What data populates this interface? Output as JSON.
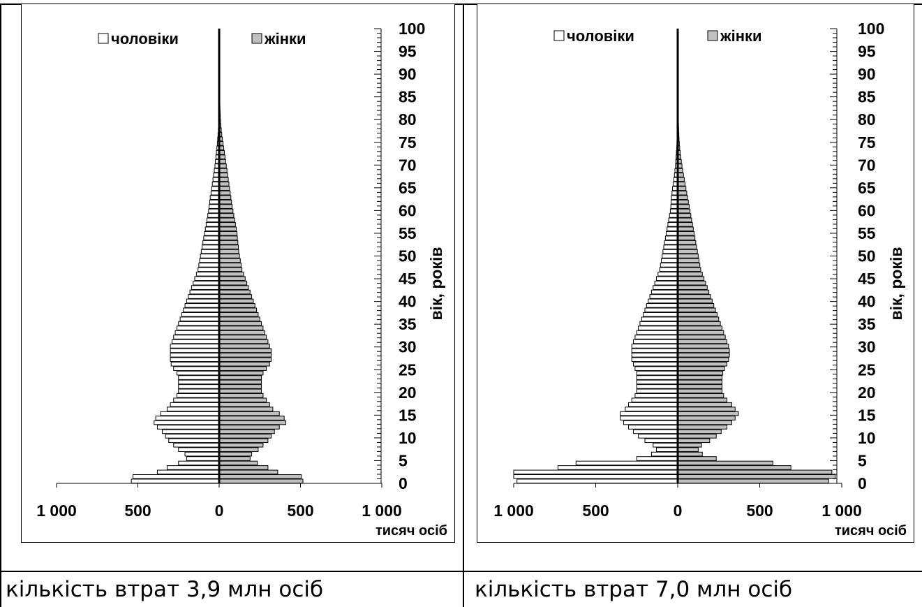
{
  "captions": [
    "кількість втрат 3,9 млн осіб",
    "кількість втрат 7,0 млн осіб"
  ],
  "chart_data": [
    {
      "type": "bar",
      "orientation": "horizontal",
      "legend": {
        "position": "top"
      },
      "series": [
        {
          "name": "чоловіки",
          "color": "#ffffff",
          "values": [
            540,
            530,
            380,
            320,
            250,
            200,
            210,
            250,
            280,
            310,
            330,
            350,
            380,
            400,
            390,
            360,
            320,
            300,
            280,
            260,
            250,
            250,
            250,
            250,
            260,
            280,
            295,
            300,
            300,
            300,
            300,
            290,
            280,
            270,
            260,
            250,
            240,
            230,
            220,
            210,
            200,
            190,
            180,
            170,
            160,
            150,
            140,
            130,
            125,
            120,
            115,
            110,
            105,
            100,
            95,
            90,
            85,
            80,
            75,
            70,
            65,
            62,
            58,
            55,
            50,
            46,
            42,
            38,
            34,
            30,
            26,
            23,
            20,
            17,
            14,
            11,
            9,
            7,
            5,
            4,
            3,
            3,
            2,
            2,
            2,
            2,
            2,
            2,
            1,
            1,
            1,
            1,
            1,
            1,
            1,
            1,
            1,
            1,
            1,
            1,
            1
          ]
        },
        {
          "name": "жінки",
          "color": "#c0c0c0",
          "values": [
            515,
            505,
            360,
            300,
            235,
            190,
            200,
            240,
            270,
            300,
            320,
            340,
            370,
            410,
            400,
            370,
            330,
            310,
            290,
            270,
            260,
            260,
            260,
            260,
            270,
            290,
            310,
            320,
            320,
            320,
            310,
            300,
            290,
            280,
            270,
            260,
            250,
            240,
            230,
            220,
            210,
            200,
            190,
            180,
            170,
            160,
            150,
            140,
            135,
            130,
            125,
            120,
            118,
            115,
            112,
            110,
            105,
            100,
            95,
            90,
            85,
            80,
            76,
            72,
            68,
            64,
            60,
            56,
            52,
            48,
            44,
            40,
            36,
            32,
            28,
            24,
            20,
            16,
            13,
            10,
            8,
            7,
            6,
            5,
            4,
            3,
            3,
            2,
            2,
            2,
            2,
            2,
            1,
            1,
            1,
            1,
            1,
            1,
            1,
            1,
            1
          ]
        }
      ],
      "x_ticks": [
        "1 000",
        "500",
        "0",
        "500",
        "1 000"
      ],
      "x_unit": "тисяч осіб",
      "xlim": [
        -1000,
        1000
      ],
      "y_ticks": [
        "0",
        "5",
        "10",
        "15",
        "20",
        "25",
        "30",
        "35",
        "40",
        "45",
        "50",
        "55",
        "60",
        "65",
        "70",
        "75",
        "80",
        "85",
        "90",
        "95",
        "100"
      ],
      "ylabel": "вік,  років",
      "ylim": [
        0,
        100
      ]
    },
    {
      "type": "bar",
      "orientation": "horizontal",
      "legend": {
        "position": "top"
      },
      "series": [
        {
          "name": "чоловіки",
          "color": "#ffffff",
          "values": [
            980,
            1000,
            1000,
            730,
            620,
            250,
            160,
            130,
            150,
            200,
            240,
            270,
            300,
            330,
            350,
            350,
            320,
            300,
            280,
            260,
            250,
            250,
            250,
            250,
            250,
            260,
            270,
            280,
            280,
            280,
            280,
            270,
            260,
            250,
            240,
            230,
            220,
            210,
            200,
            190,
            180,
            170,
            160,
            150,
            140,
            130,
            120,
            110,
            105,
            100,
            95,
            90,
            85,
            80,
            75,
            70,
            65,
            60,
            55,
            50,
            45,
            42,
            40,
            38,
            35,
            32,
            28,
            24,
            20,
            17,
            14,
            12,
            10,
            8,
            6,
            5,
            4,
            3,
            3,
            2,
            2,
            2,
            2,
            2,
            2,
            2,
            2,
            2,
            1,
            1,
            1,
            1,
            1,
            1,
            1,
            1,
            1,
            1,
            1,
            1,
            1
          ]
        },
        {
          "name": "жінки",
          "color": "#c0c0c0",
          "values": [
            920,
            960,
            940,
            690,
            580,
            235,
            150,
            125,
            145,
            195,
            235,
            265,
            300,
            330,
            350,
            370,
            350,
            330,
            300,
            280,
            270,
            270,
            270,
            270,
            275,
            285,
            300,
            310,
            315,
            315,
            310,
            300,
            290,
            280,
            270,
            260,
            250,
            240,
            230,
            220,
            210,
            200,
            190,
            180,
            170,
            160,
            150,
            140,
            135,
            130,
            125,
            120,
            115,
            110,
            105,
            100,
            95,
            90,
            85,
            80,
            75,
            70,
            65,
            60,
            55,
            50,
            45,
            40,
            35,
            30,
            26,
            22,
            18,
            15,
            12,
            10,
            8,
            7,
            6,
            5,
            4,
            4,
            3,
            3,
            3,
            3,
            3,
            2,
            2,
            2,
            2,
            2,
            2,
            2,
            2,
            2,
            2,
            2,
            2,
            2,
            2
          ]
        }
      ],
      "x_ticks": [
        "1 000",
        "500",
        "0",
        "500",
        "1 000"
      ],
      "x_unit": "тисяч осіб",
      "xlim": [
        -1000,
        1000
      ],
      "y_ticks": [
        "0",
        "5",
        "10",
        "15",
        "20",
        "25",
        "30",
        "35",
        "40",
        "45",
        "50",
        "55",
        "60",
        "65",
        "70",
        "75",
        "80",
        "85",
        "90",
        "95",
        "100"
      ],
      "ylabel": "вік,  років",
      "ylim": [
        0,
        100
      ]
    }
  ]
}
